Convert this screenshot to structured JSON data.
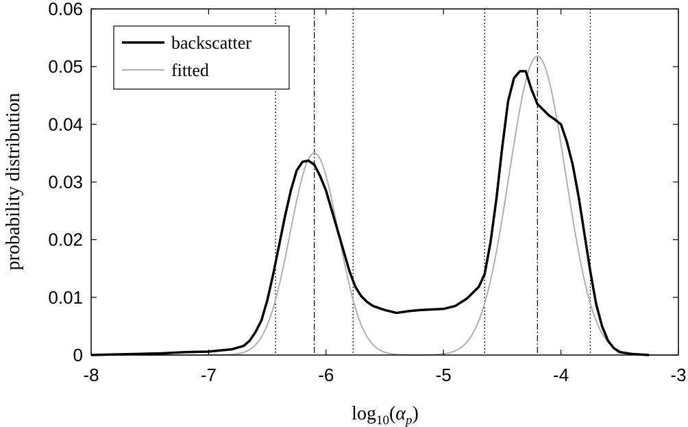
{
  "chart_data": {
    "type": "line",
    "title": "",
    "xlabel_parts": {
      "func": "log",
      "sub": "10",
      "open": "(",
      "var": "α",
      "var_sub": "p",
      "close": ")"
    },
    "ylabel": "probability distribution",
    "xlim": [
      -8,
      -3
    ],
    "ylim": [
      0,
      0.06
    ],
    "xticks": [
      -8,
      -7,
      -6,
      -5,
      -4,
      -3
    ],
    "xtick_labels": [
      "-8",
      "-7",
      "-6",
      "-5",
      "-4",
      "-3"
    ],
    "yticks": [
      0,
      0.01,
      0.02,
      0.03,
      0.04,
      0.05,
      0.06
    ],
    "ytick_labels": [
      "0",
      "0.01",
      "0.02",
      "0.03",
      "0.04",
      "0.05",
      "0.06"
    ],
    "grid": false,
    "legend": {
      "placement": "top-left",
      "entries": [
        "backscatter",
        "fitted"
      ]
    },
    "series": [
      {
        "name": "backscatter",
        "color": "#000000",
        "style": "solid-thick",
        "points": [
          [
            -8.0,
            0.0
          ],
          [
            -7.8,
            0.0001
          ],
          [
            -7.6,
            0.0002
          ],
          [
            -7.4,
            0.0003
          ],
          [
            -7.2,
            0.0005
          ],
          [
            -7.0,
            0.0006
          ],
          [
            -6.9,
            0.0008
          ],
          [
            -6.8,
            0.001
          ],
          [
            -6.7,
            0.0016
          ],
          [
            -6.65,
            0.0025
          ],
          [
            -6.6,
            0.004
          ],
          [
            -6.55,
            0.006
          ],
          [
            -6.5,
            0.0095
          ],
          [
            -6.45,
            0.014
          ],
          [
            -6.4,
            0.019
          ],
          [
            -6.35,
            0.024
          ],
          [
            -6.3,
            0.0285
          ],
          [
            -6.25,
            0.032
          ],
          [
            -6.2,
            0.0335
          ],
          [
            -6.15,
            0.0337
          ],
          [
            -6.1,
            0.033
          ],
          [
            -6.05,
            0.031
          ],
          [
            -6.0,
            0.0285
          ],
          [
            -5.95,
            0.025
          ],
          [
            -5.9,
            0.0215
          ],
          [
            -5.85,
            0.018
          ],
          [
            -5.8,
            0.0145
          ],
          [
            -5.75,
            0.0118
          ],
          [
            -5.7,
            0.0102
          ],
          [
            -5.65,
            0.0092
          ],
          [
            -5.6,
            0.0085
          ],
          [
            -5.5,
            0.0078
          ],
          [
            -5.4,
            0.0073
          ],
          [
            -5.3,
            0.0076
          ],
          [
            -5.2,
            0.0078
          ],
          [
            -5.1,
            0.0079
          ],
          [
            -5.0,
            0.008
          ],
          [
            -4.9,
            0.0085
          ],
          [
            -4.8,
            0.0098
          ],
          [
            -4.7,
            0.0118
          ],
          [
            -4.65,
            0.014
          ],
          [
            -4.6,
            0.0195
          ],
          [
            -4.55,
            0.027
          ],
          [
            -4.5,
            0.036
          ],
          [
            -4.45,
            0.044
          ],
          [
            -4.4,
            0.048
          ],
          [
            -4.35,
            0.0492
          ],
          [
            -4.3,
            0.0492
          ],
          [
            -4.25,
            0.046
          ],
          [
            -4.2,
            0.0435
          ],
          [
            -4.15,
            0.0425
          ],
          [
            -4.1,
            0.0415
          ],
          [
            -4.05,
            0.0408
          ],
          [
            -4.0,
            0.04
          ],
          [
            -3.95,
            0.037
          ],
          [
            -3.9,
            0.033
          ],
          [
            -3.85,
            0.0275
          ],
          [
            -3.8,
            0.021
          ],
          [
            -3.75,
            0.0145
          ],
          [
            -3.7,
            0.0088
          ],
          [
            -3.65,
            0.005
          ],
          [
            -3.6,
            0.0025
          ],
          [
            -3.55,
            0.0012
          ],
          [
            -3.5,
            0.0005
          ],
          [
            -3.4,
            0.0002
          ],
          [
            -3.25,
            0.0
          ]
        ]
      },
      {
        "name": "fitted",
        "color": "#b0b0b0",
        "style": "solid-thin",
        "gaussians": [
          {
            "amplitude": 0.035,
            "mean": -6.1,
            "sigma": 0.205
          },
          {
            "amplitude": 0.0518,
            "mean": -4.2,
            "sigma": 0.24
          }
        ],
        "x_range": [
          -8,
          -3
        ]
      }
    ],
    "vertical_lines": [
      {
        "x": -6.43,
        "style": "dotted"
      },
      {
        "x": -6.1,
        "style": "dashdot"
      },
      {
        "x": -5.77,
        "style": "dotted"
      },
      {
        "x": -4.65,
        "style": "dotted"
      },
      {
        "x": -4.2,
        "style": "dashdot"
      },
      {
        "x": -3.75,
        "style": "dotted"
      }
    ]
  }
}
